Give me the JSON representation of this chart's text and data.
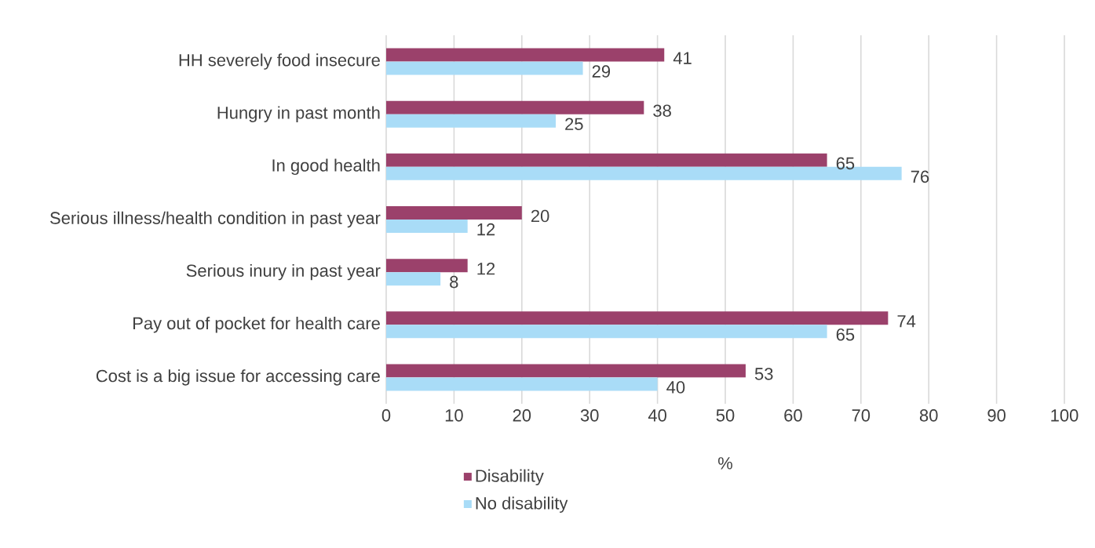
{
  "chart_data": {
    "type": "bar",
    "orientation": "horizontal",
    "xlabel": "%",
    "categories": [
      "HH severely food insecure",
      "Hungry in past month",
      "In good health",
      "Serious illness/health condition in past year",
      "Serious inury in past year",
      "Pay out of pocket for health care",
      "Cost is a big issue for accessing care"
    ],
    "series": [
      {
        "name": "Disability",
        "color": "#9b416b",
        "values": [
          41,
          38,
          65,
          20,
          12,
          74,
          53
        ]
      },
      {
        "name": "No disability",
        "color": "#a9dcf7",
        "values": [
          29,
          25,
          76,
          12,
          8,
          65,
          40
        ]
      }
    ],
    "xlim": [
      0,
      100
    ],
    "xticks": [
      0,
      10,
      20,
      30,
      40,
      50,
      60,
      70,
      80,
      90,
      100
    ],
    "grid": "x",
    "legend": "bottom",
    "data_labels": true
  }
}
